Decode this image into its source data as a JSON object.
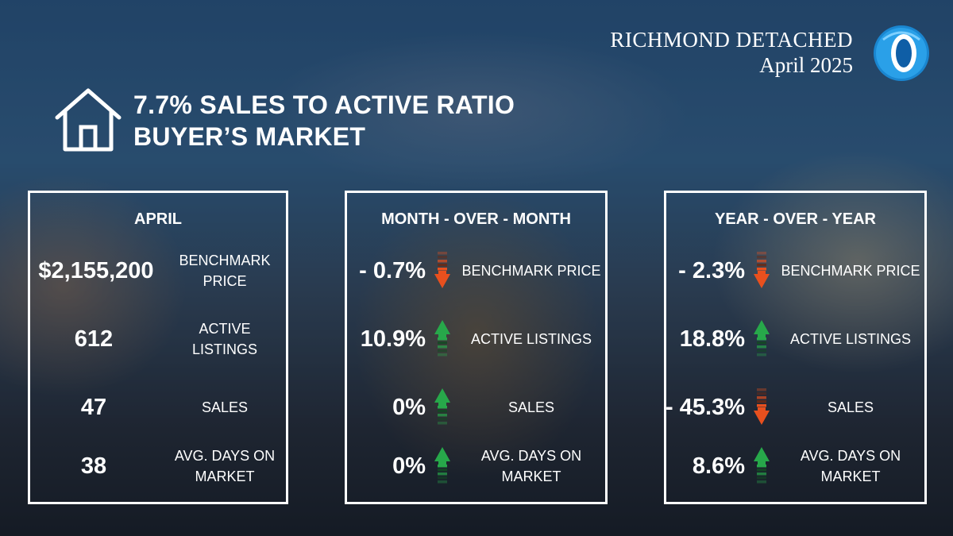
{
  "brand": {
    "title": "RICHMOND DETACHED",
    "date": "April 2025",
    "accent_color": "#1e90d6"
  },
  "headline": {
    "line1": "7.7% SALES TO ACTIVE RATIO",
    "line2": "BUYER’S MARKET",
    "icon": "house-icon"
  },
  "april": {
    "title": "APRIL",
    "rows": [
      {
        "value": "$2,155,200",
        "label": "BENCHMARK PRICE"
      },
      {
        "value": "612",
        "label": "ACTIVE LISTINGS"
      },
      {
        "value": "47",
        "label": "SALES"
      },
      {
        "value": "38",
        "label": "AVG. DAYS ON MARKET"
      }
    ]
  },
  "mom": {
    "title": "MONTH - OVER - MONTH",
    "rows": [
      {
        "value": "- 0.7%",
        "label": "BENCHMARK PRICE",
        "direction": "down"
      },
      {
        "value": "10.9%",
        "label": "ACTIVE LISTINGS",
        "direction": "up"
      },
      {
        "value": "0%",
        "label": "SALES",
        "direction": "up"
      },
      {
        "value": "0%",
        "label": "AVG. DAYS ON MARKET",
        "direction": "up"
      }
    ]
  },
  "yoy": {
    "title": "YEAR - OVER - YEAR",
    "rows": [
      {
        "value": "- 2.3%",
        "label": "BENCHMARK PRICE",
        "direction": "down"
      },
      {
        "value": "18.8%",
        "label": "ACTIVE LISTINGS",
        "direction": "up"
      },
      {
        "value": "- 45.3%",
        "label": "SALES",
        "direction": "down"
      },
      {
        "value": "8.6%",
        "label": "AVG. DAYS ON MARKET",
        "direction": "up"
      }
    ]
  },
  "colors": {
    "up": "#27a84a",
    "down": "#e8501e"
  }
}
